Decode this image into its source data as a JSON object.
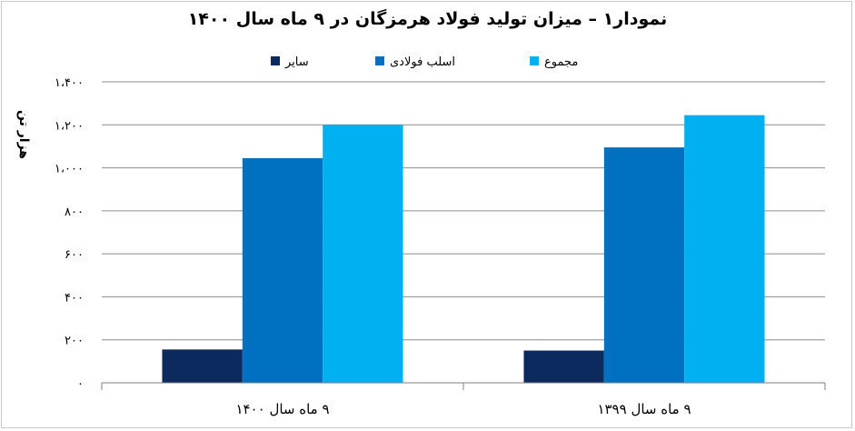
{
  "chart_data": {
    "type": "bar",
    "title": "نمودار۱ – میزان تولید فولاد هرمزگان در ۹ ماه سال ۱۴۰۰",
    "ylabel": "هزار تن",
    "xlabel": "",
    "ylim": [
      0,
      1400
    ],
    "yticks": [
      0,
      200,
      400,
      600,
      800,
      1000,
      1200,
      1400
    ],
    "ytick_labels": [
      "۰",
      "۲۰۰",
      "۴۰۰",
      "۶۰۰",
      "۸۰۰",
      "۱،۰۰۰",
      "۱،۲۰۰",
      "۱،۴۰۰"
    ],
    "categories": [
      "۹ ماه سال ۱۴۰۰",
      "۹ ماه سال ۱۳۹۹"
    ],
    "series": [
      {
        "name": "سایر",
        "color": "#0d2a5e",
        "values": [
          155,
          150
        ]
      },
      {
        "name": "اسلب فولادی",
        "color": "#0070c0",
        "values": [
          1045,
          1095
        ]
      },
      {
        "name": "مجموع",
        "color": "#00b0f0",
        "values": [
          1200,
          1245
        ]
      }
    ],
    "grid": true,
    "legend_position": "top"
  }
}
